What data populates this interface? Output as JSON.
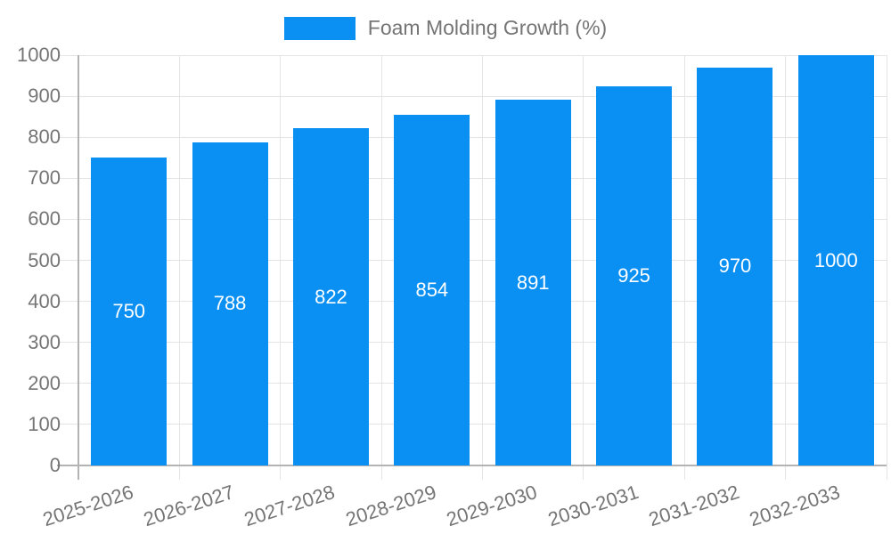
{
  "legend": {
    "label": "Foam Molding Growth (%)"
  },
  "colors": {
    "bar": "#0a8ff2",
    "grid": "#e4e4e4",
    "axis": "#b3b3b3",
    "tick_text": "#757575",
    "bar_label_text": "#ffffff",
    "background": "#ffffff"
  },
  "chart_data": {
    "type": "bar",
    "title": "",
    "xlabel": "",
    "ylabel": "",
    "legend": [
      "Foam Molding Growth (%)"
    ],
    "legend_position": "top-center",
    "categories": [
      "2025-2026",
      "2026-2027",
      "2027-2028",
      "2028-2029",
      "2029-2030",
      "2030-2031",
      "2031-2032",
      "2032-2033"
    ],
    "values": [
      750,
      788,
      822,
      854,
      891,
      925,
      970,
      1000
    ],
    "bar_labels_shown": true,
    "ylim": [
      0,
      1000
    ],
    "ytick_step": 100,
    "y_ticks": [
      "0",
      "100",
      "200",
      "300",
      "400",
      "500",
      "600",
      "700",
      "800",
      "900",
      "1000"
    ],
    "grid": true
  }
}
